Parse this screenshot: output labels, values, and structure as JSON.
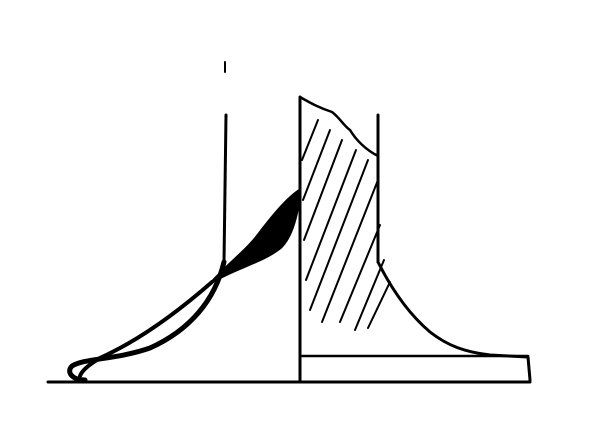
{
  "diagram": {
    "type": "line-drawing-cross-section",
    "colors": {
      "ink": "#000000",
      "background": "#ffffff"
    },
    "hatched_region": true
  }
}
